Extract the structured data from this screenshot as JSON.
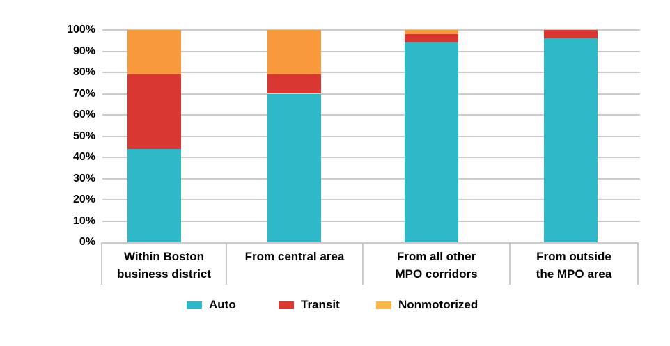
{
  "chart_data": {
    "type": "bar",
    "stacked": true,
    "units": "percent",
    "title": "",
    "grid": true,
    "categories": [
      {
        "line1": "Within Boston",
        "line2": "business district"
      },
      {
        "line1": "From central area",
        "line2": ""
      },
      {
        "line1": "From all other",
        "line2": "MPO corridors"
      },
      {
        "line1": "From outside",
        "line2": "the MPO area"
      }
    ],
    "series": [
      {
        "name": "Auto",
        "color": "#2EB8C8",
        "values": [
          44,
          70,
          94,
          96
        ]
      },
      {
        "name": "Transit",
        "color": "#D93732",
        "values": [
          35,
          9,
          4,
          4
        ]
      },
      {
        "name": "Nonmotorized",
        "color": "#F8993B",
        "values": [
          21,
          21,
          2,
          0
        ]
      }
    ],
    "y_axis": {
      "min": 0,
      "max": 100,
      "tick_step": 10,
      "tick_labels": [
        "0%",
        "10%",
        "20%",
        "30%",
        "40%",
        "50%",
        "60%",
        "70%",
        "80%",
        "90%",
        "100%"
      ]
    },
    "legend": {
      "position": "bottom",
      "entries": [
        {
          "label": "Auto",
          "swatch_color": "#2EB8C8"
        },
        {
          "label": "Transit",
          "swatch_color": "#D93732"
        },
        {
          "label": "Nonmotorized",
          "swatch_color": "#FBB644"
        }
      ]
    }
  }
}
